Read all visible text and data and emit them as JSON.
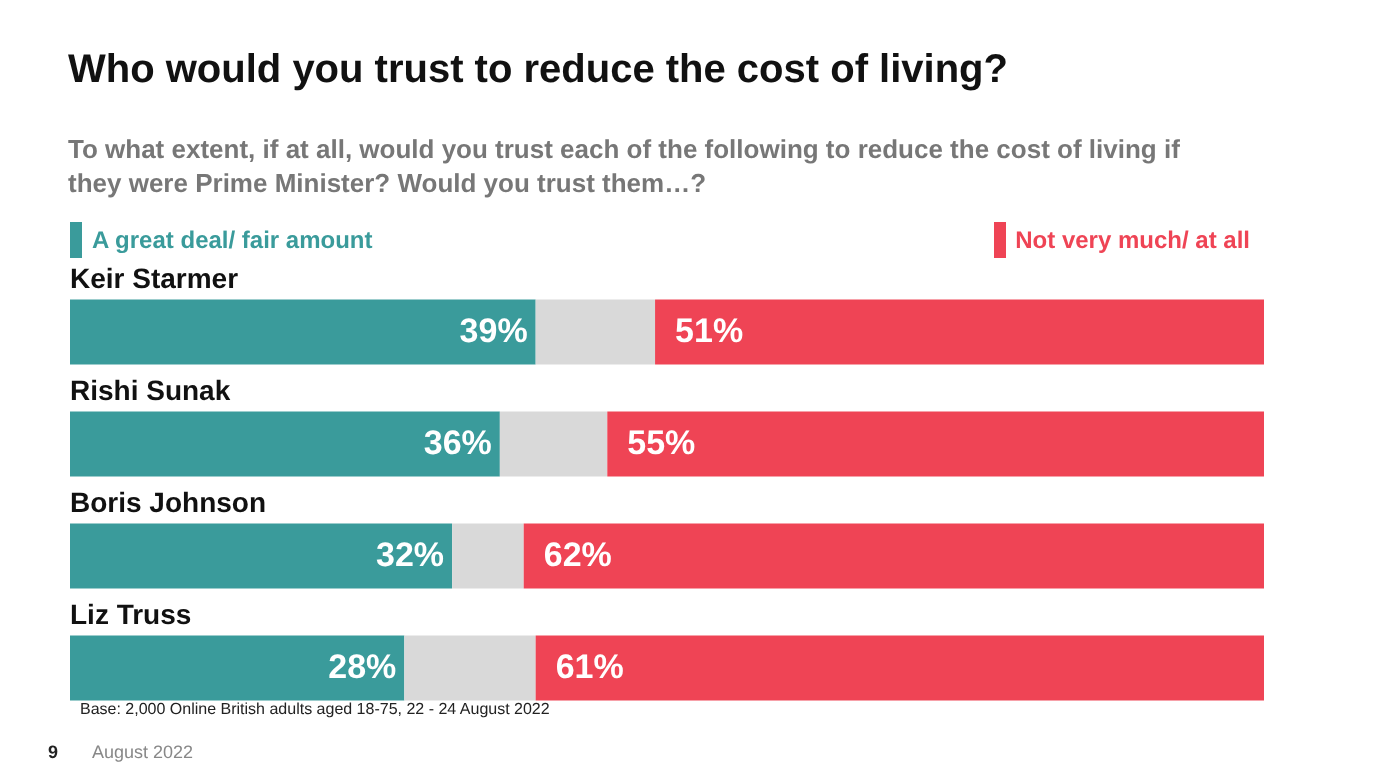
{
  "chart_data": {
    "type": "bar",
    "title": "Who would you trust to reduce the cost of living?",
    "subtitle": "To what extent, if at all, would you trust each of the following to reduce the cost of living if they were Prime Minister? Would you trust them…?",
    "categories": [
      "Keir Starmer",
      "Rishi Sunak",
      "Boris Johnson",
      "Liz Truss"
    ],
    "series": [
      {
        "name": "A great deal/ fair amount",
        "color": "#3a9b9b",
        "values": [
          39,
          36,
          32,
          28
        ],
        "value_labels": [
          "39%",
          "36%",
          "32%",
          "28%"
        ]
      },
      {
        "color": "#d9d9d9",
        "values": [
          10,
          9,
          6,
          11
        ]
      },
      {
        "name": "Not very much/ at all",
        "color": "#ef4455",
        "values": [
          51,
          55,
          62,
          61
        ],
        "value_labels": [
          "51%",
          "55%",
          "62%",
          "61%"
        ]
      }
    ],
    "stacked": true,
    "orientation": "horizontal",
    "xlim": [
      0,
      100
    ],
    "tick_labels": false,
    "legend": "top",
    "annotations": [
      "Base: 2,000 Online British adults aged 18-75, 22 - 24 August 2022",
      "August 2022",
      "9"
    ]
  }
}
